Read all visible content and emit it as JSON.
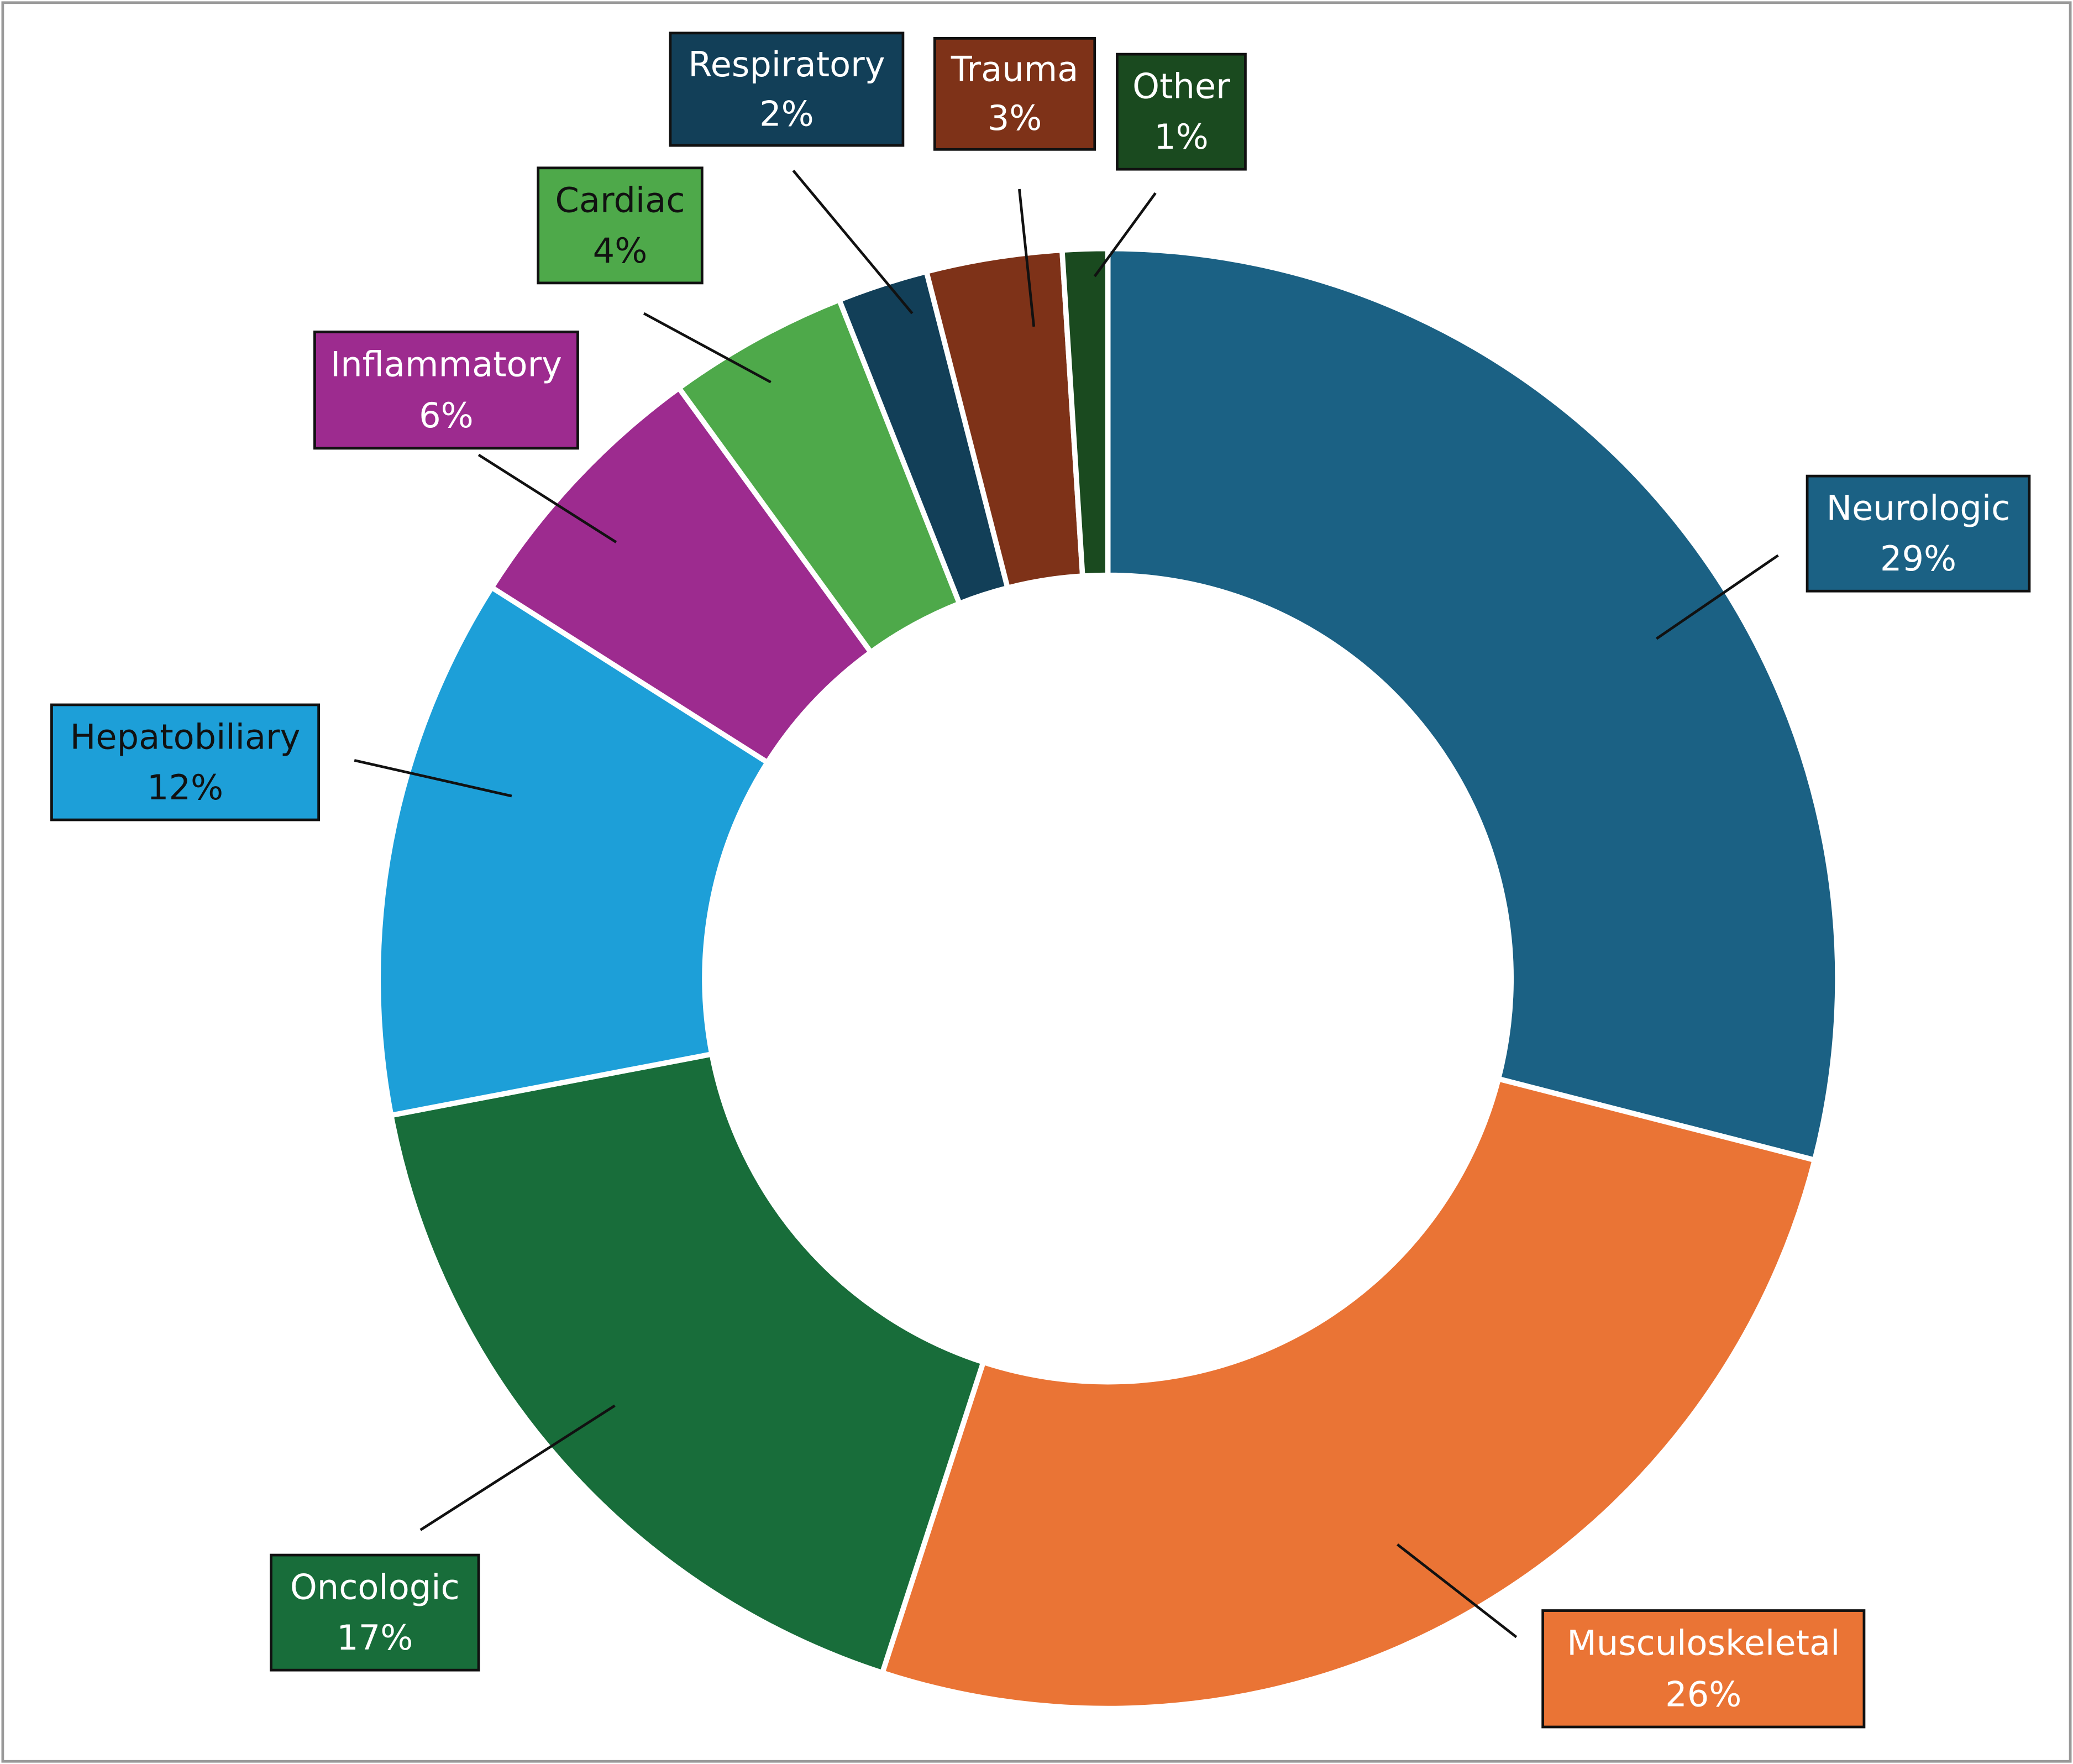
{
  "chart_data": {
    "type": "donut",
    "categories": [
      "Neurologic",
      "Musculoskeletal",
      "Oncologic",
      "Hepatobiliary",
      "Inflammatory",
      "Cardiac",
      "Respiratory",
      "Trauma",
      "Other"
    ],
    "values": [
      29,
      26,
      17,
      12,
      6,
      4,
      2,
      3,
      1
    ],
    "value_labels": [
      "29%",
      "26%",
      "17%",
      "12%",
      "6%",
      "4%",
      "2%",
      "3%",
      "1%"
    ],
    "colors": [
      "#1b6184",
      "#ea7435",
      "#186d3a",
      "#1d9fd8",
      "#9d2b8f",
      "#4ea94a",
      "#123f58",
      "#7e3218",
      "#1a4a1f"
    ]
  }
}
